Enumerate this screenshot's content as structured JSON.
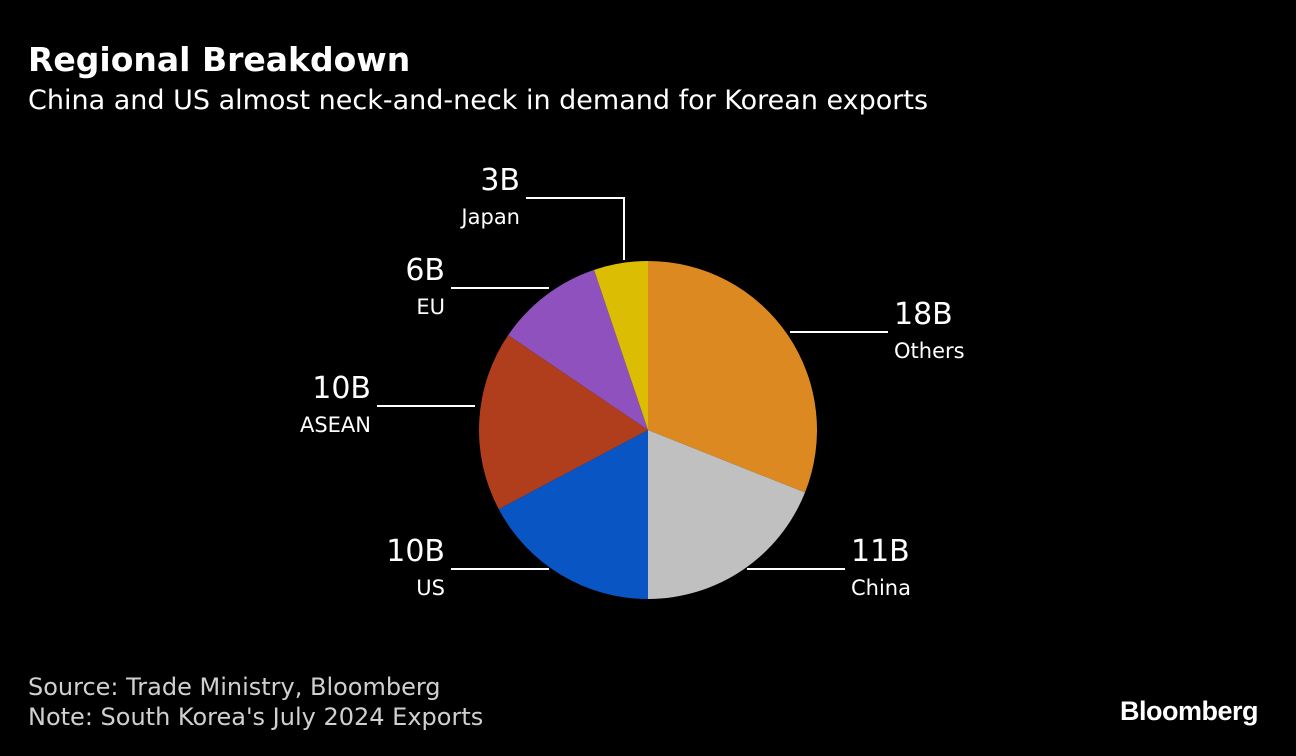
{
  "chart_data": {
    "type": "pie",
    "title": "Regional Breakdown",
    "subtitle": "China and US almost neck-and-neck in demand for Korean exports",
    "slices": [
      {
        "name": "Others",
        "label": "18B",
        "value": 18,
        "color": "#dd8922"
      },
      {
        "name": "China",
        "label": "11B",
        "value": 11,
        "color": "#c0c0c0"
      },
      {
        "name": "US",
        "label": "10B",
        "value": 10,
        "color": "#0a55c4"
      },
      {
        "name": "ASEAN",
        "label": "10B",
        "value": 10,
        "color": "#b03e1d"
      },
      {
        "name": "EU",
        "label": "6B",
        "value": 6,
        "color": "#8e51bd"
      },
      {
        "name": "Japan",
        "label": "3B",
        "value": 3,
        "color": "#dbbd04"
      }
    ],
    "source": "Source: Trade Ministry, Bloomberg",
    "note": "Note: South Korea's July 2024 Exports"
  },
  "brand": "Bloomberg"
}
